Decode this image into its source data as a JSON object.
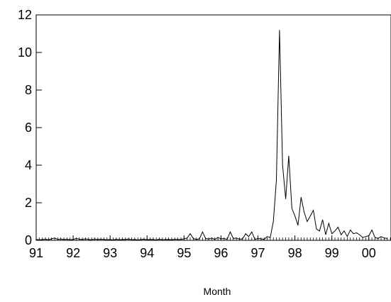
{
  "chart_data": {
    "type": "line",
    "title": "",
    "xlabel": "Month",
    "ylabel": "",
    "xlim": [
      1991.0,
      2000.6
    ],
    "ylim": [
      0,
      12
    ],
    "grid": false,
    "legend": "none",
    "series_color": "#000000",
    "y_ticks": [
      0,
      2,
      4,
      6,
      8,
      10,
      12
    ],
    "y_tick_labels": [
      "0",
      "2",
      "4",
      "6",
      "8",
      "10",
      "12"
    ],
    "x_ticks": [
      1991,
      1992,
      1993,
      1994,
      1995,
      1996,
      1997,
      1998,
      1999,
      2000
    ],
    "x_tick_labels": [
      "91",
      "92",
      "93",
      "94",
      "95",
      "96",
      "97",
      "98",
      "99",
      "00"
    ],
    "series": [
      {
        "x": [
          1991.0,
          1991.083,
          1991.167,
          1991.25,
          1991.333,
          1991.417,
          1991.5,
          1991.583,
          1991.667,
          1991.75,
          1991.833,
          1991.917,
          1992.0,
          1992.083,
          1992.167,
          1992.25,
          1992.333,
          1992.417,
          1992.5,
          1992.583,
          1992.667,
          1992.75,
          1992.833,
          1992.917,
          1993.0,
          1993.083,
          1993.167,
          1993.25,
          1993.333,
          1993.417,
          1993.5,
          1993.583,
          1993.667,
          1993.75,
          1993.833,
          1993.917,
          1994.0,
          1994.083,
          1994.167,
          1994.25,
          1994.333,
          1994.417,
          1994.5,
          1994.583,
          1994.667,
          1994.75,
          1994.833,
          1994.917,
          1995.0,
          1995.083,
          1995.167,
          1995.25,
          1995.333,
          1995.417,
          1995.5,
          1995.583,
          1995.667,
          1995.75,
          1995.833,
          1995.917,
          1996.0,
          1996.083,
          1996.167,
          1996.25,
          1996.333,
          1996.417,
          1996.5,
          1996.583,
          1996.667,
          1996.75,
          1996.833,
          1996.917,
          1997.0,
          1997.083,
          1997.167,
          1997.25,
          1997.333,
          1997.417,
          1997.5,
          1997.583,
          1997.667,
          1997.75,
          1997.833,
          1997.917,
          1998.0,
          1998.083,
          1998.167,
          1998.25,
          1998.333,
          1998.417,
          1998.5,
          1998.583,
          1998.667,
          1998.75,
          1998.833,
          1998.917,
          1999.0,
          1999.083,
          1999.167,
          1999.25,
          1999.333,
          1999.417,
          1999.5,
          1999.583,
          1999.667,
          1999.75,
          1999.833,
          1999.917,
          2000.0,
          2000.083,
          2000.167,
          2000.25,
          2000.333,
          2000.417,
          2000.5
        ],
        "values": [
          0.05,
          0.03,
          0.04,
          0.06,
          0.03,
          0.08,
          0.12,
          0.05,
          0.07,
          0.04,
          0.06,
          0.03,
          0.05,
          0.1,
          0.06,
          0.04,
          0.08,
          0.05,
          0.03,
          0.07,
          0.04,
          0.06,
          0.05,
          0.03,
          0.04,
          0.02,
          0.06,
          0.03,
          0.05,
          0.04,
          0.07,
          0.03,
          0.05,
          0.02,
          0.04,
          0.06,
          0.03,
          0.05,
          0.04,
          0.02,
          0.06,
          0.03,
          0.04,
          0.05,
          0.03,
          0.06,
          0.04,
          0.05,
          0.08,
          0.12,
          0.35,
          0.1,
          0.05,
          0.08,
          0.45,
          0.1,
          0.07,
          0.12,
          0.05,
          0.15,
          0.08,
          0.1,
          0.05,
          0.45,
          0.1,
          0.12,
          0.06,
          0.08,
          0.35,
          0.2,
          0.45,
          0.05,
          0.1,
          0.08,
          0.05,
          0.2,
          0.15,
          1.0,
          3.2,
          11.2,
          4.0,
          2.2,
          4.5,
          1.7,
          1.3,
          0.8,
          2.3,
          1.5,
          1.0,
          1.3,
          1.6,
          0.6,
          0.5,
          1.1,
          0.3,
          0.9,
          0.35,
          0.5,
          0.7,
          0.3,
          0.5,
          0.2,
          0.55,
          0.35,
          0.4,
          0.3,
          0.15,
          0.2,
          0.25,
          0.55,
          0.15,
          0.1,
          0.2,
          0.12,
          0.1
        ]
      }
    ]
  }
}
